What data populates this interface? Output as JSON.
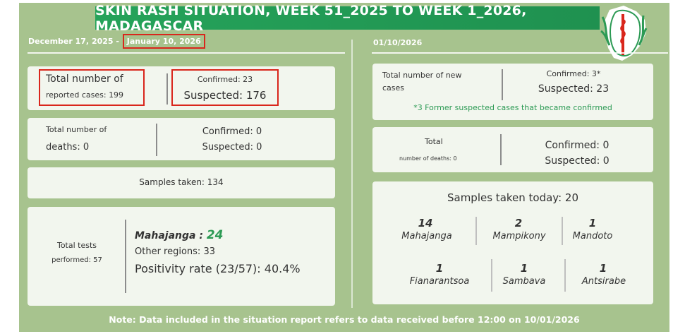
{
  "title": "SKIN RASH SITUATION, WEEK 51_2025 TO WEEK 1_2026, MADAGASCAR",
  "left": {
    "date_start": "December 17, 2025 - ",
    "date_end": "January 10, 2026",
    "cases": {
      "label_line1": "Total number of",
      "label_line2": "reported cases: 199",
      "confirmed": "Confirmed: 23",
      "suspected": "Suspected: 176"
    },
    "deaths": {
      "label_line1": "Total number of",
      "label_line2": "deaths: 0",
      "confirmed": "Confirmed: 0",
      "suspected": "Suspected: 0"
    },
    "samples": "Samples taken: 134",
    "tests": {
      "label_line1": "Total tests",
      "label_line2": "performed: 57",
      "mahajanga_label": "Mahajanga : ",
      "mahajanga_value": "24",
      "other_regions": "Other regions: 33",
      "positivity": "Positivity rate (23/57): 40.4%"
    }
  },
  "right": {
    "date": "01/10/2026",
    "new_cases": {
      "label_line1": "Total number of new",
      "label_line2": "cases",
      "confirmed": "Confirmed: 3*",
      "suspected": "Suspected: 23",
      "footnote": "*3 Former suspected cases that became confirmed"
    },
    "deaths": {
      "label_line1": "Total",
      "label_line2": "number of deaths: 0",
      "confirmed": "Confirmed: 0",
      "suspected": "Suspected: 0"
    },
    "samples_today": {
      "label": "Samples taken today: 20",
      "locations": [
        {
          "count": "14",
          "name": "Mahajanga"
        },
        {
          "count": "2",
          "name": "Mampikony"
        },
        {
          "count": "1",
          "name": "Mandoto"
        },
        {
          "count": "1",
          "name": "Fianarantsoa"
        },
        {
          "count": "1",
          "name": "Sambava"
        },
        {
          "count": "1",
          "name": "Antsirabe"
        }
      ]
    }
  },
  "note": "Note: Data included in the situation report refers to data received before 12:00 on 10/01/2026",
  "colors": {
    "background": "#a7c38e",
    "title_bar": "#25a35a",
    "highlight_box": "#d9261c",
    "accent_green": "#2c9a54"
  },
  "icons": {
    "logo": "ministry-of-health-logo"
  }
}
